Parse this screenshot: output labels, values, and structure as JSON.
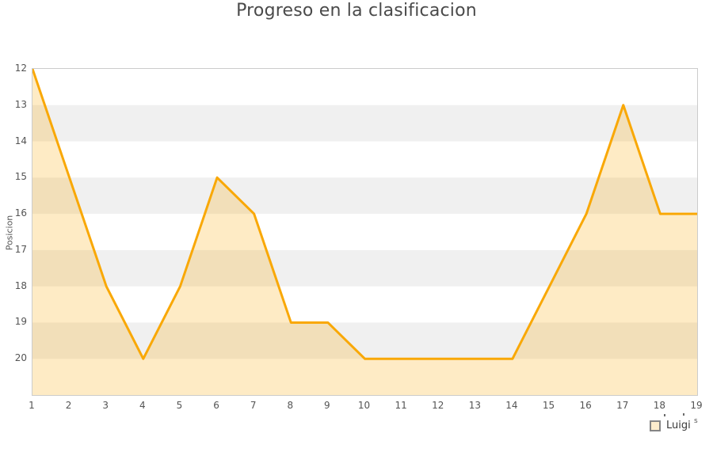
{
  "title": "Progreso en la clasificacion",
  "chart_data": {
    "type": "area",
    "title": "Progreso en la clasificacion",
    "xlabel": "",
    "ylabel": "Posicion",
    "x": [
      1,
      2,
      3,
      4,
      5,
      6,
      7,
      8,
      9,
      10,
      11,
      12,
      13,
      14,
      15,
      16,
      17,
      18,
      19
    ],
    "series": [
      {
        "name": "Luigi",
        "values": [
          12,
          15,
          18,
          20,
          18,
          15,
          16,
          19,
          19,
          20,
          20,
          20,
          20,
          20,
          18,
          16,
          13,
          16,
          16
        ]
      }
    ],
    "x_tick_labels": [
      "1",
      "2",
      "3",
      "4",
      "5",
      "6",
      "7",
      "8",
      "9",
      "10",
      "11",
      "12",
      "13",
      "14",
      "15",
      "16",
      "17",
      "18",
      "19"
    ],
    "y_tick_labels": [
      "12",
      "13",
      "14",
      "15",
      "16",
      "17",
      "18",
      "19",
      "20"
    ],
    "y_ticks": [
      12,
      13,
      14,
      15,
      16,
      17,
      18,
      19,
      20
    ],
    "ylim": [
      12,
      21
    ],
    "y_axis_direction": "inverted-ranking (best position 12 at top, values increase downward)",
    "xlim": [
      1,
      19
    ],
    "grid": "alternating horizontal bands",
    "legend_position": "bottom-right"
  },
  "legend": {
    "label": "Luigi",
    "suffix": "s"
  },
  "colors": {
    "line": "#F9A806",
    "fill": "#F9A806",
    "fill_opacity": 0.23,
    "band_gray": "#f0f0f0",
    "band_white": "#ffffff",
    "plot_border": "#cccccc",
    "tick_text": "#545454",
    "title_text": "#4a4a4a",
    "legend_swatch_fill": "#fceccc",
    "legend_swatch_border": "#858585"
  }
}
